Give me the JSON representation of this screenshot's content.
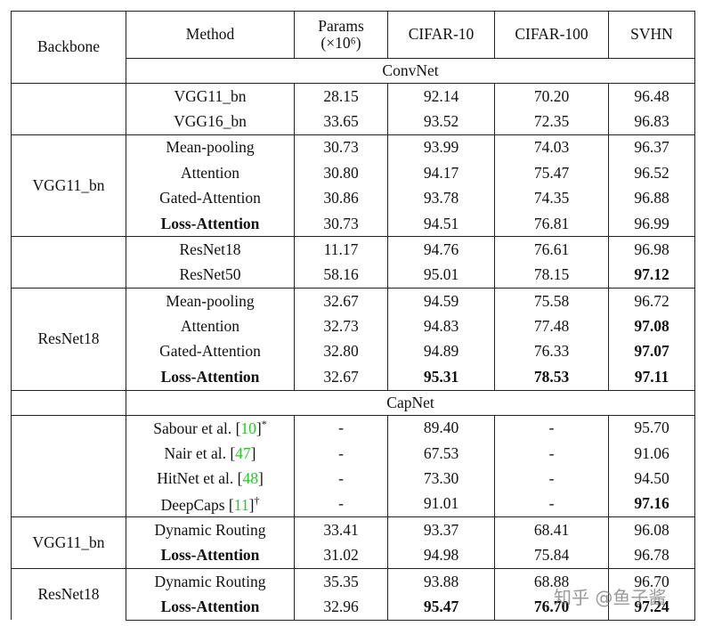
{
  "columns": [
    "Backbone",
    "Method",
    [
      "Params",
      "(×10⁶)"
    ],
    "CIFAR-10",
    "CIFAR-100",
    "SVHN"
  ],
  "sections": [
    {
      "title": "ConvNet",
      "groups": [
        {
          "rows": [
            {
              "cells": [
                "VGG11_bn",
                "28.15",
                "92.14",
                "70.20",
                "96.48"
              ],
              "bold": []
            },
            {
              "cells": [
                "VGG16_bn",
                "33.65",
                "93.52",
                "72.35",
                "96.83"
              ],
              "bold": []
            }
          ]
        },
        {
          "backbone": "VGG11_bn",
          "rows": [
            {
              "cells": [
                "Mean-pooling",
                "30.73",
                "93.99",
                "74.03",
                "96.37"
              ],
              "bold": []
            },
            {
              "cells": [
                "Attention",
                "30.80",
                "94.17",
                "75.47",
                "96.52"
              ],
              "bold": []
            },
            {
              "cells": [
                "Gated-Attention",
                "30.86",
                "93.78",
                "74.35",
                "96.88"
              ],
              "bold": []
            },
            {
              "cells": [
                "Loss-Attention",
                "30.73",
                "94.51",
                "76.81",
                "96.99"
              ],
              "bold": [
                0
              ]
            }
          ]
        },
        {
          "rows": [
            {
              "cells": [
                "ResNet18",
                "11.17",
                "94.76",
                "76.61",
                "96.98"
              ],
              "bold": []
            },
            {
              "cells": [
                "ResNet50",
                "58.16",
                "95.01",
                "78.15",
                "97.12"
              ],
              "bold": [
                4
              ]
            }
          ]
        },
        {
          "backbone": "ResNet18",
          "rows": [
            {
              "cells": [
                "Mean-pooling",
                "32.67",
                "94.59",
                "75.58",
                "96.72"
              ],
              "bold": []
            },
            {
              "cells": [
                "Attention",
                "32.73",
                "94.83",
                "77.48",
                "97.08"
              ],
              "bold": [
                4
              ]
            },
            {
              "cells": [
                "Gated-Attention",
                "32.80",
                "94.89",
                "76.33",
                "97.07"
              ],
              "bold": [
                4
              ]
            },
            {
              "cells": [
                "Loss-Attention",
                "32.67",
                "95.31",
                "78.53",
                "97.11"
              ],
              "bold": [
                0,
                2,
                3,
                4
              ]
            }
          ]
        }
      ]
    },
    {
      "title": "CapNet",
      "groups": [
        {
          "rows": [
            {
              "cells": [
                {
                  "text": "Sabour et al. [",
                  "cite": "10",
                  "after": "]",
                  "sup": "*"
                },
                "-",
                "89.40",
                "-",
                "95.70"
              ],
              "bold": []
            },
            {
              "cells": [
                {
                  "text": "Nair et al. [",
                  "cite": "47",
                  "after": "]"
                },
                "-",
                "67.53",
                "-",
                "91.06"
              ],
              "bold": []
            },
            {
              "cells": [
                {
                  "text": "HitNet et al. [",
                  "cite": "48",
                  "after": "]"
                },
                "-",
                "73.30",
                "-",
                "94.50"
              ],
              "bold": []
            },
            {
              "cells": [
                {
                  "text": "DeepCaps [",
                  "cite": "11",
                  "after": "]",
                  "sup": "†"
                },
                "-",
                "91.01",
                "-",
                "97.16"
              ],
              "bold": [
                4
              ]
            }
          ]
        },
        {
          "backbone": "VGG11_bn",
          "rows": [
            {
              "cells": [
                "Dynamic Routing",
                "33.41",
                "93.37",
                "68.41",
                "96.08"
              ],
              "bold": []
            },
            {
              "cells": [
                "Loss-Attention",
                "31.02",
                "94.98",
                "75.84",
                "96.78"
              ],
              "bold": [
                0
              ]
            }
          ]
        },
        {
          "backbone": "ResNet18",
          "rows": [
            {
              "cells": [
                "Dynamic Routing",
                "35.35",
                "93.88",
                "68.88",
                "96.70"
              ],
              "bold": []
            },
            {
              "cells": [
                "Loss-Attention",
                "32.96",
                "95.47",
                "76.70",
                "97.24"
              ],
              "bold": [
                0,
                2,
                3,
                4
              ]
            }
          ]
        }
      ]
    }
  ],
  "cite_color": "#22cc22",
  "watermark": "知乎 @鱼子酱"
}
